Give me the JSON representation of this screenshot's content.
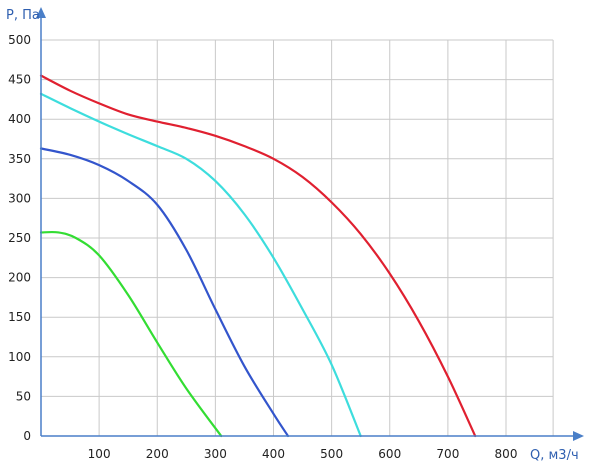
{
  "chart_data": {
    "type": "line",
    "title": "",
    "xlabel": "Q, м3/ч",
    "ylabel": "P, Па",
    "xlim": [
      0,
      900
    ],
    "ylim": [
      0,
      500
    ],
    "x_ticks": [
      100,
      200,
      300,
      400,
      500,
      600,
      700,
      800
    ],
    "y_ticks": [
      0,
      50,
      100,
      150,
      200,
      250,
      300,
      350,
      400,
      450,
      500
    ],
    "grid": true,
    "legend": "none",
    "series": [
      {
        "color": "#e02030",
        "points": [
          [
            0,
            455
          ],
          [
            50,
            436
          ],
          [
            100,
            420
          ],
          [
            150,
            406
          ],
          [
            200,
            397
          ],
          [
            250,
            389
          ],
          [
            300,
            379
          ],
          [
            350,
            366
          ],
          [
            400,
            350
          ],
          [
            450,
            327
          ],
          [
            500,
            295
          ],
          [
            550,
            255
          ],
          [
            600,
            205
          ],
          [
            650,
            145
          ],
          [
            700,
            75
          ],
          [
            747,
            0
          ]
        ]
      },
      {
        "color": "#3ddddd",
        "points": [
          [
            0,
            432
          ],
          [
            50,
            414
          ],
          [
            100,
            397
          ],
          [
            150,
            381
          ],
          [
            200,
            366
          ],
          [
            250,
            350
          ],
          [
            300,
            322
          ],
          [
            350,
            280
          ],
          [
            400,
            225
          ],
          [
            450,
            160
          ],
          [
            500,
            90
          ],
          [
            550,
            0
          ]
        ]
      },
      {
        "color": "#3355cc",
        "points": [
          [
            0,
            363
          ],
          [
            50,
            355
          ],
          [
            100,
            342
          ],
          [
            150,
            322
          ],
          [
            200,
            292
          ],
          [
            250,
            235
          ],
          [
            300,
            160
          ],
          [
            350,
            88
          ],
          [
            400,
            28
          ],
          [
            425,
            0
          ]
        ]
      },
      {
        "color": "#33dd33",
        "points": [
          [
            0,
            257
          ],
          [
            30,
            257
          ],
          [
            60,
            250
          ],
          [
            100,
            228
          ],
          [
            150,
            178
          ],
          [
            200,
            118
          ],
          [
            250,
            60
          ],
          [
            310,
            0
          ]
        ]
      }
    ]
  }
}
